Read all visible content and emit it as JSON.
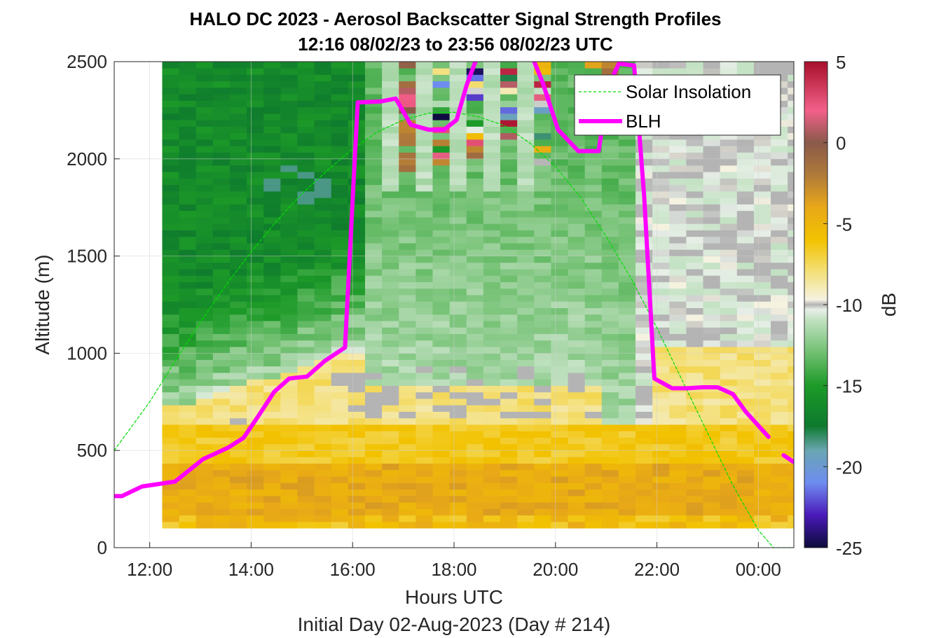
{
  "chart_data": {
    "type": "heatmap",
    "title": "HALO DC 2023 - Aerosol Backscatter Signal Strength Profiles",
    "subtitle": "12:16 08/02/23 to 23:56 08/02/23  UTC",
    "xlabel": "Hours UTC",
    "xlabel2": "Initial Day 02-Aug-2023 (Day # 214)",
    "ylabel": "Altitude (m)",
    "colorbar_label": "dB",
    "xlim_hours": [
      11.3,
      24.7
    ],
    "ylim": [
      0,
      2500
    ],
    "x_ticks": [
      {
        "value": 12,
        "label": "12:00"
      },
      {
        "value": 14,
        "label": "14:00"
      },
      {
        "value": 16,
        "label": "16:00"
      },
      {
        "value": 18,
        "label": "18:00"
      },
      {
        "value": 20,
        "label": "20:00"
      },
      {
        "value": 22,
        "label": "22:00"
      },
      {
        "value": 24,
        "label": "00:00"
      }
    ],
    "y_ticks": [
      {
        "value": 0,
        "label": "0"
      },
      {
        "value": 500,
        "label": "500"
      },
      {
        "value": 1000,
        "label": "1000"
      },
      {
        "value": 1500,
        "label": "1500"
      },
      {
        "value": 2000,
        "label": "2000"
      },
      {
        "value": 2500,
        "label": "2500"
      }
    ],
    "colorbar": {
      "range": [
        -25,
        5
      ],
      "ticks": [
        {
          "value": 5,
          "label": "5"
        },
        {
          "value": 0,
          "label": "0"
        },
        {
          "value": -5,
          "label": "-5"
        },
        {
          "value": -10,
          "label": "-10"
        },
        {
          "value": -15,
          "label": "-15"
        },
        {
          "value": -20,
          "label": "-20"
        },
        {
          "value": -25,
          "label": "-25"
        }
      ],
      "stops": [
        {
          "value": -25,
          "color": "#0b0b3a"
        },
        {
          "value": -23,
          "color": "#4a19b8"
        },
        {
          "value": -21,
          "color": "#6e8cf0"
        },
        {
          "value": -19,
          "color": "#6aa6b2"
        },
        {
          "value": -17.5,
          "color": "#0e7a2e"
        },
        {
          "value": -15,
          "color": "#1d9a28"
        },
        {
          "value": -13,
          "color": "#6fbf6f"
        },
        {
          "value": -11,
          "color": "#bfe0bf"
        },
        {
          "value": -10.3,
          "color": "#e8efe8"
        },
        {
          "value": -10,
          "color": "#b4b4b4"
        },
        {
          "value": -9.7,
          "color": "#f5f2e2"
        },
        {
          "value": -8,
          "color": "#f4e07a"
        },
        {
          "value": -6,
          "color": "#f2c200"
        },
        {
          "value": -4,
          "color": "#e8a818"
        },
        {
          "value": -2,
          "color": "#b07a3a"
        },
        {
          "value": 0,
          "color": "#8a5a4a"
        },
        {
          "value": 2,
          "color": "#f2608a"
        },
        {
          "value": 5,
          "color": "#a8102a"
        }
      ]
    },
    "heatmap": {
      "x_start_hour": 12.25,
      "x_step_hour": 0.3333,
      "y_start_m": 100,
      "y_step_m": 33.33,
      "columns": 51,
      "rows": 72,
      "missing_value": -10,
      "note_columns": "Each column holds dB values from bottom to top, estimated from the color scale."
    },
    "series": [
      {
        "name": "Solar Insolation",
        "type": "line",
        "color": "#00dd00",
        "style": "dashed",
        "x": [
          11.3,
          12.0,
          12.5,
          13.0,
          13.5,
          14.0,
          14.5,
          15.0,
          15.5,
          16.0,
          16.5,
          17.0,
          17.5,
          18.0,
          18.5,
          19.0,
          19.5,
          20.0,
          20.5,
          21.0,
          21.5,
          22.0,
          22.5,
          23.0,
          23.5,
          24.0,
          24.3,
          24.7
        ],
        "y": [
          500,
          750,
          960,
          1160,
          1350,
          1520,
          1680,
          1820,
          1940,
          2050,
          2140,
          2200,
          2235,
          2240,
          2215,
          2170,
          2080,
          1960,
          1800,
          1600,
          1380,
          1130,
          860,
          590,
          320,
          90,
          0,
          0
        ]
      },
      {
        "name": "BLH",
        "type": "line",
        "color": "#ff00ff",
        "style": "solid",
        "x": [
          11.3,
          11.45,
          11.85,
          12.5,
          13.05,
          13.55,
          13.85,
          14.15,
          14.45,
          14.75,
          15.1,
          15.45,
          15.85,
          16.1,
          16.55,
          16.85,
          17.15,
          17.5,
          17.8,
          18.05,
          18.25,
          18.45
        ],
        "y": [
          265,
          265,
          315,
          340,
          455,
          515,
          565,
          680,
          800,
          870,
          880,
          960,
          1030,
          2290,
          2295,
          2310,
          2175,
          2150,
          2150,
          2200,
          2380,
          2520
        ]
      },
      {
        "name": "BLH segment 2",
        "type": "line",
        "color": "#ff00ff",
        "style": "solid",
        "x": [
          19.55,
          19.75,
          20.05,
          20.45,
          20.85,
          21.05,
          21.25,
          21.55,
          21.75,
          21.95,
          22.3,
          22.6,
          22.9,
          23.2,
          23.5,
          23.75,
          24.2
        ],
        "y": [
          2520,
          2390,
          2150,
          2040,
          2040,
          2380,
          2490,
          2480,
          1800,
          870,
          820,
          820,
          825,
          825,
          790,
          700,
          570
        ]
      },
      {
        "name": "BLH segment 3",
        "type": "line",
        "color": "#ff00ff",
        "style": "solid",
        "x": [
          24.5,
          24.7
        ],
        "y": [
          475,
          440
        ]
      }
    ],
    "legend": {
      "position": "top-right",
      "entries": [
        "Solar Insolation",
        "BLH"
      ]
    },
    "grid": true
  }
}
